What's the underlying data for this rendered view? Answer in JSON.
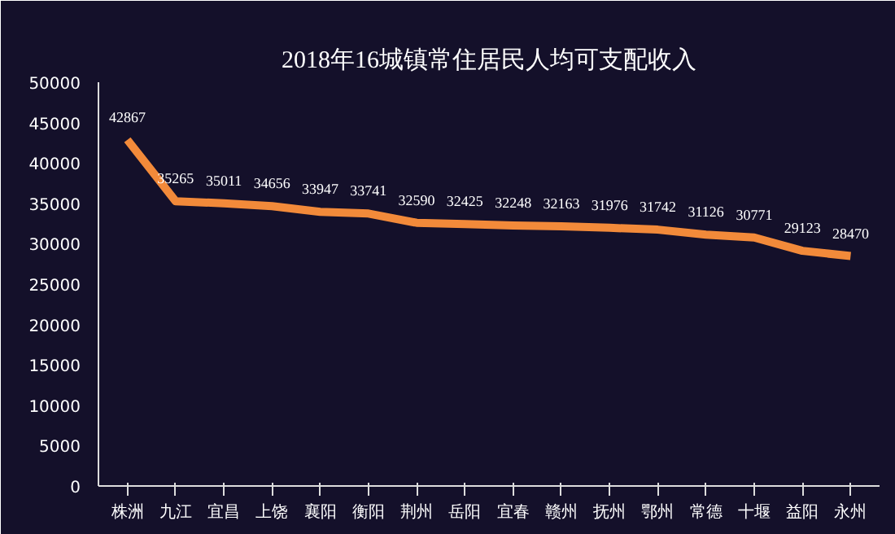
{
  "chart_data": {
    "type": "line",
    "title": "2018年16城镇常住居民人均可支配收入",
    "categories": [
      "株洲",
      "九江",
      "宜昌",
      "上饶",
      "襄阳",
      "衡阳",
      "荆州",
      "岳阳",
      "宜春",
      "赣州",
      "抚州",
      "鄂州",
      "常德",
      "十堰",
      "益阳",
      "永州"
    ],
    "series": [
      {
        "color": "#f28a3a",
        "values": [
          42867,
          35265,
          35011,
          34656,
          33947,
          33741,
          32590,
          32425,
          32248,
          32163,
          31976,
          31742,
          31126,
          30771,
          29123,
          28470
        ]
      }
    ],
    "ylim": [
      0,
      50000
    ],
    "yticks": [
      0,
      5000,
      10000,
      15000,
      20000,
      25000,
      30000,
      35000,
      40000,
      45000,
      50000
    ],
    "data_labels": true,
    "grid": false,
    "marker": "none",
    "line_style": "solid"
  }
}
